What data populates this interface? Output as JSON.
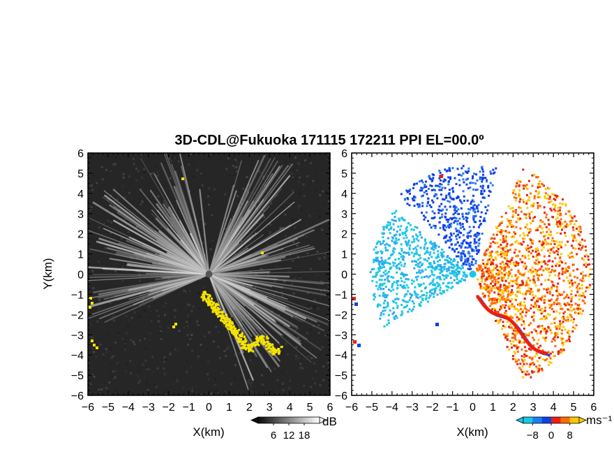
{
  "title": "3D-CDL@Fukuoka 171115 172211 PPI EL=00.0º",
  "chart_data": [
    {
      "type": "heatmap",
      "name": "reflectivity-ppi",
      "xlabel": "X(km)",
      "ylabel": "Y(km)",
      "xlim": [
        -6,
        6
      ],
      "ylim": [
        -6,
        6
      ],
      "xticks": [
        "−6",
        "−5",
        "−4",
        "−3",
        "−2",
        "−1",
        "0",
        "1",
        "2",
        "3",
        "4",
        "5",
        "6"
      ],
      "yticks": [
        "6",
        "5",
        "4",
        "3",
        "2",
        "1",
        "0",
        "−1",
        "−2",
        "−3",
        "−4",
        "−5",
        "−6"
      ],
      "colorbar": {
        "unit": "dB",
        "ticks": [
          "6",
          "12",
          "18"
        ],
        "tick_values": [
          6,
          12,
          18
        ],
        "range": [
          0,
          24
        ]
      },
      "colors": {
        "background": "#222222",
        "echo": "#dcdcdc",
        "flag": "#f5e400"
      }
    },
    {
      "type": "heatmap",
      "name": "doppler-velocity-ppi",
      "xlabel": "X(km)",
      "xlim": [
        -6,
        6
      ],
      "ylim": [
        -6,
        6
      ],
      "xticks": [
        "−6",
        "−5",
        "−4",
        "−3",
        "−2",
        "−1",
        "0",
        "1",
        "2",
        "3",
        "4",
        "5",
        "6"
      ],
      "yticks": [
        "6",
        "5",
        "4",
        "3",
        "2",
        "1",
        "0",
        "−1",
        "−2",
        "−3",
        "−4",
        "−5",
        "−6"
      ],
      "colorbar": {
        "unit": "ms⁻¹",
        "ticks": [
          "−8",
          "0",
          "8"
        ],
        "tick_values": [
          -8,
          0,
          8
        ],
        "range": [
          -12,
          12
        ]
      },
      "colors": {
        "cyan": "#19c8e6",
        "blue": "#1040e8",
        "red": "#e82010",
        "orange": "#ff6a00",
        "yellow": "#ffc800"
      }
    }
  ]
}
